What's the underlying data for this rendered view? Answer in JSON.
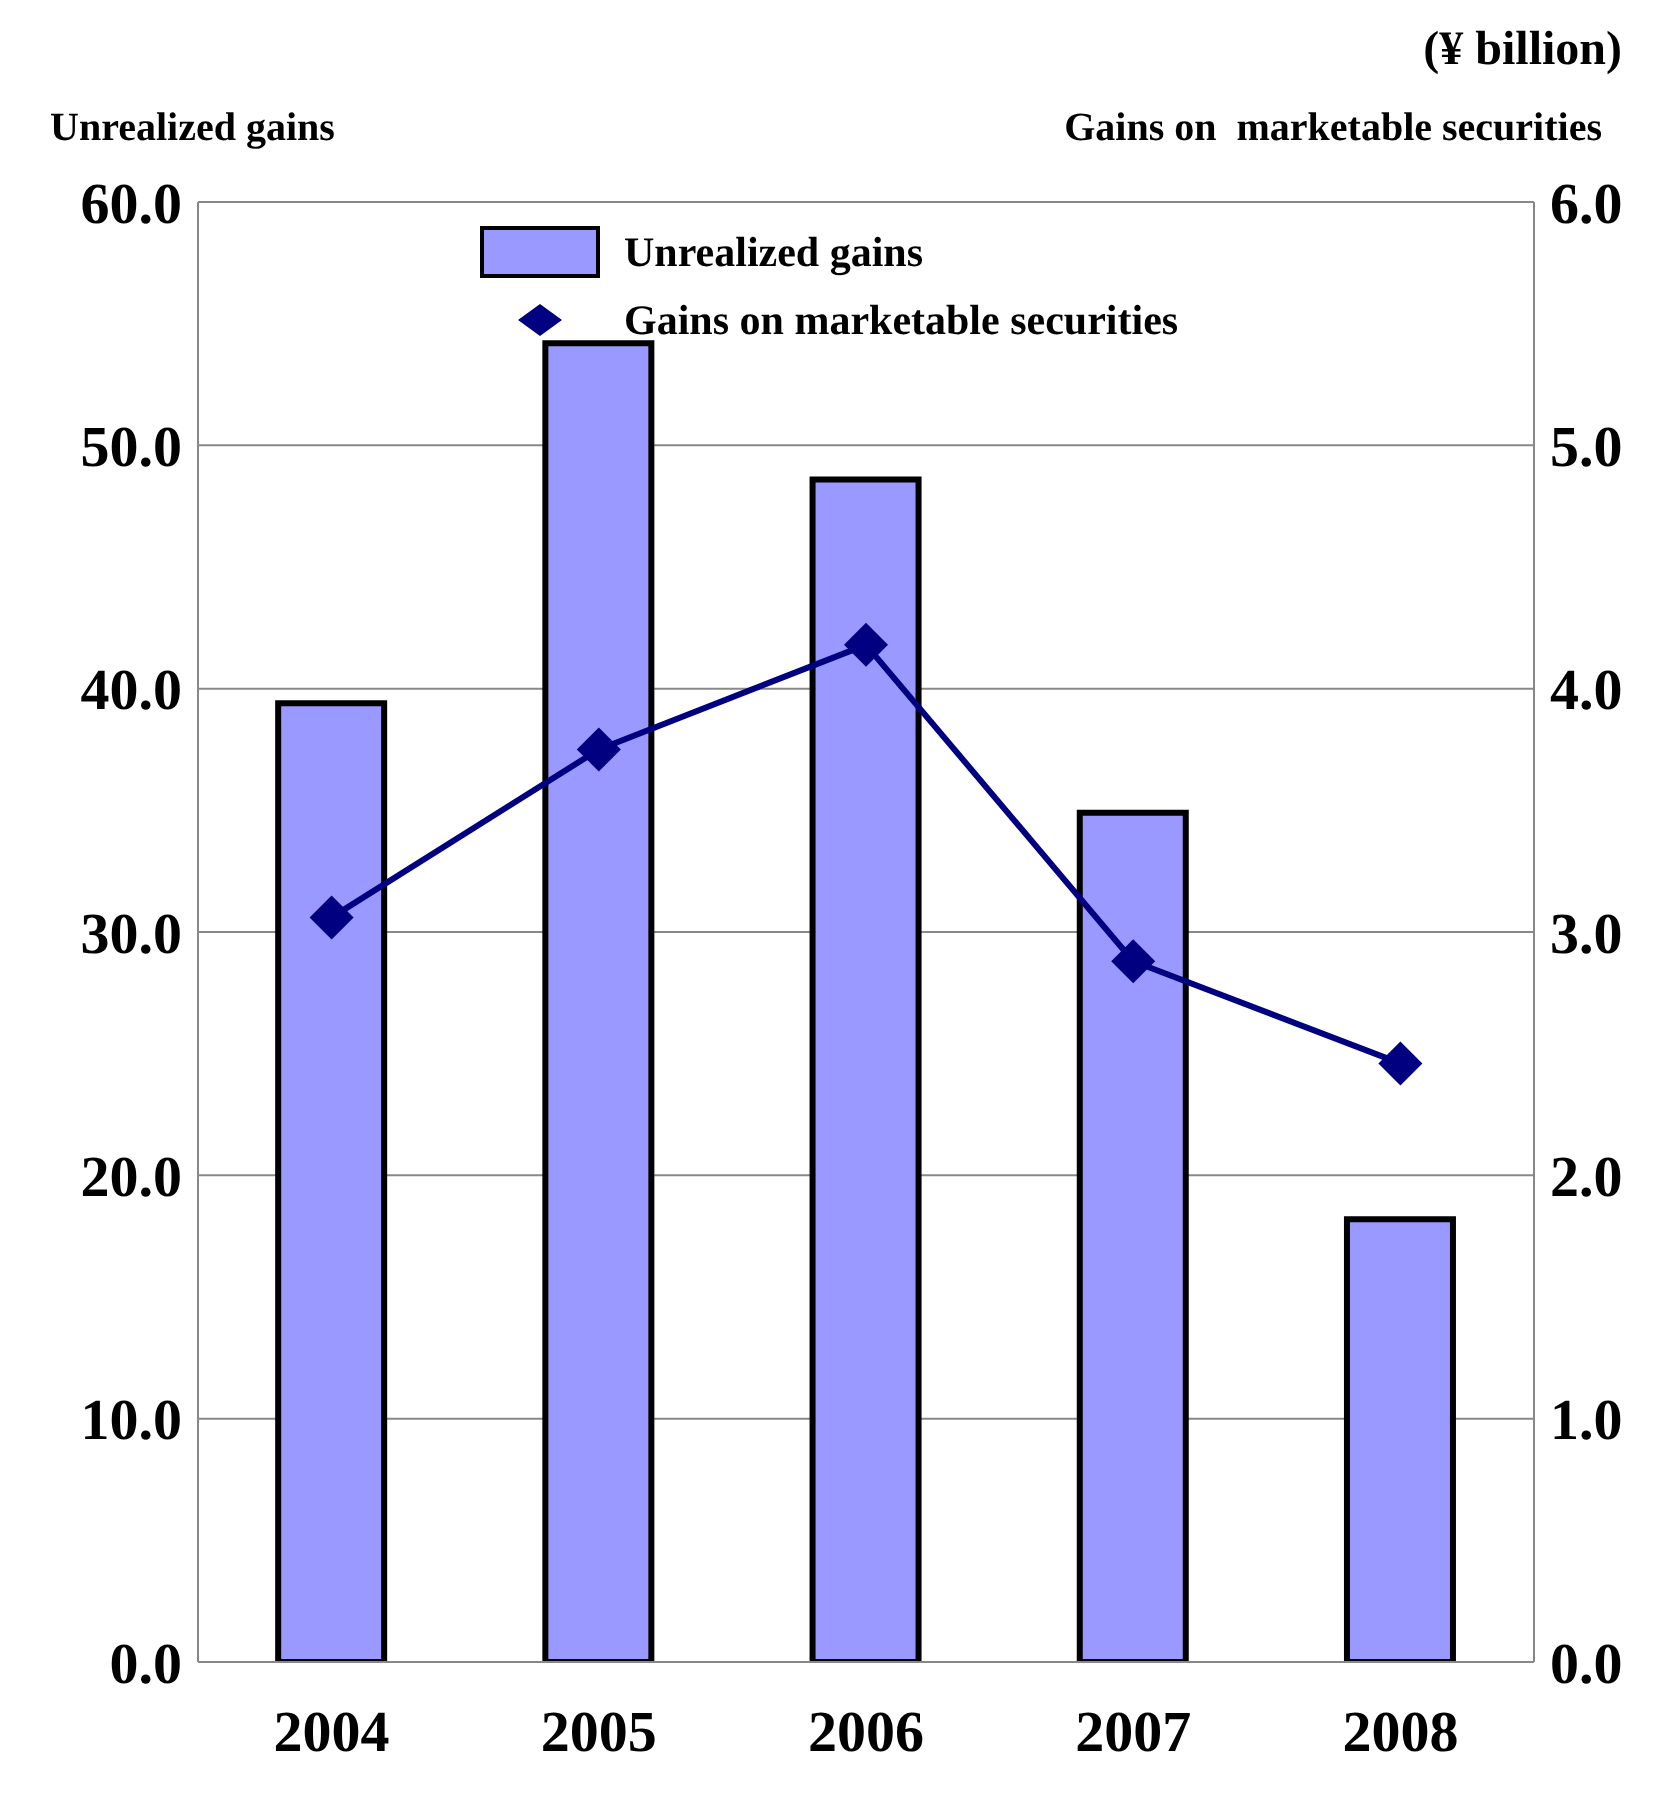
{
  "chart_data": {
    "type": "bar",
    "annotations": [
      "(¥ billion)"
    ],
    "ylabel": "Unrealized gains",
    "y2label": "Gains on  marketable securities",
    "categories": [
      "2004",
      "2005",
      "2006",
      "2007",
      "2008"
    ],
    "series": [
      {
        "name": "Unrealized gains",
        "color": "#9999ff",
        "values": [
          39.4,
          54.2,
          48.6,
          34.9,
          18.2
        ]
      },
      {
        "name": "Gains on marketable securities",
        "type": "line",
        "axis": "y2",
        "color": "#000080",
        "marker": "diamond",
        "values": [
          3.06,
          3.75,
          4.18,
          2.88,
          2.46
        ]
      }
    ],
    "ylim": [
      0,
      60
    ],
    "yticks": [
      {
        "value": 0,
        "label": "0.0"
      },
      {
        "value": 10,
        "label": "10.0"
      },
      {
        "value": 20,
        "label": "20.0"
      },
      {
        "value": 30,
        "label": "30.0"
      },
      {
        "value": 40,
        "label": "40.0"
      },
      {
        "value": 50,
        "label": "50.0"
      },
      {
        "value": 60,
        "label": "60.0"
      }
    ],
    "y2lim": [
      0,
      6
    ],
    "y2ticks": [
      {
        "value": 0,
        "label": "0.0"
      },
      {
        "value": 1,
        "label": "1.0"
      },
      {
        "value": 2,
        "label": "2.0"
      },
      {
        "value": 3,
        "label": "3.0"
      },
      {
        "value": 4,
        "label": "4.0"
      },
      {
        "value": 5,
        "label": "5.0"
      },
      {
        "value": 6,
        "label": "6.0"
      }
    ],
    "grid": "y",
    "legend": "top"
  }
}
